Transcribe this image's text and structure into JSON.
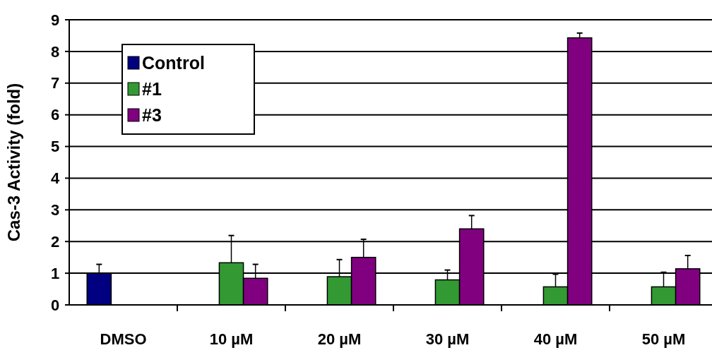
{
  "chart_data": {
    "type": "bar",
    "ylabel": "Cas-3 Activity (fold)",
    "categories": [
      "DMSO",
      "10 µM",
      "20 µM",
      "30 µM",
      "40 µM",
      "50 µM"
    ],
    "series": [
      {
        "name": "Control",
        "color": "#000080",
        "values": [
          1.0,
          null,
          null,
          null,
          null,
          null
        ],
        "errors": [
          0.28,
          null,
          null,
          null,
          null,
          null
        ]
      },
      {
        "name": "#1",
        "color": "#339933",
        "values": [
          null,
          1.33,
          0.89,
          0.79,
          0.57,
          0.57
        ],
        "errors": [
          null,
          0.86,
          0.54,
          0.31,
          0.4,
          0.46
        ]
      },
      {
        "name": "#3",
        "color": "#800080",
        "values": [
          null,
          0.84,
          1.5,
          2.4,
          8.43,
          1.14
        ],
        "errors": [
          null,
          0.44,
          0.57,
          0.42,
          0.15,
          0.42
        ]
      }
    ],
    "ylim": [
      0,
      9
    ],
    "yticks": [
      0,
      1,
      2,
      3,
      4,
      5,
      6,
      7,
      8,
      9
    ],
    "grid": "y",
    "legend": "top left"
  }
}
